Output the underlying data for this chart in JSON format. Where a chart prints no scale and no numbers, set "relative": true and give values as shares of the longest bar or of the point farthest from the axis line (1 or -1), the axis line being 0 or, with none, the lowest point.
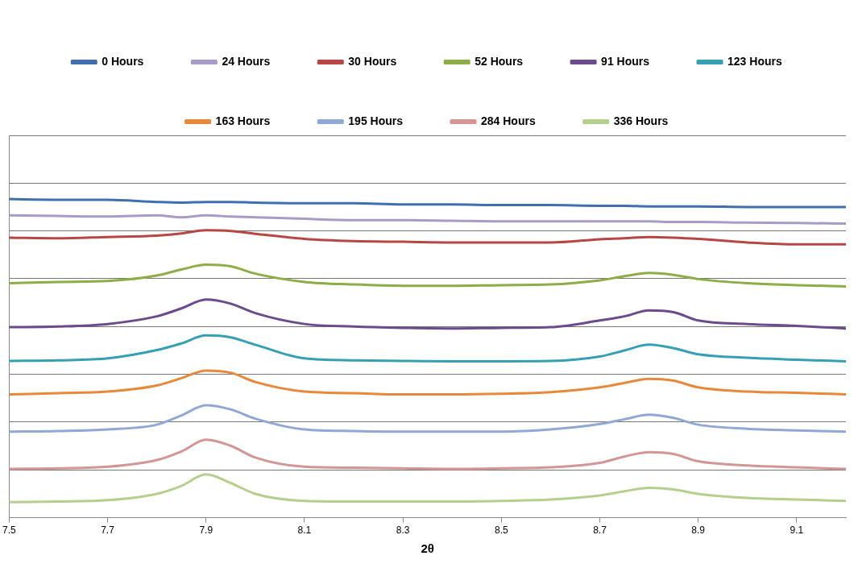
{
  "chart_data": {
    "type": "line",
    "relative": true,
    "xlabel": "2θ",
    "xlim": [
      7.5,
      9.2
    ],
    "xticks": [
      7.5,
      7.7,
      7.9,
      8.1,
      8.3,
      8.5,
      8.7,
      8.9,
      9.1
    ],
    "grid": "y",
    "legend": "top",
    "marker": "none",
    "line_style": "solid",
    "x": [
      7.5,
      7.6,
      7.7,
      7.8,
      7.85,
      7.9,
      7.95,
      8.0,
      8.1,
      8.2,
      8.3,
      8.4,
      8.5,
      8.6,
      8.7,
      8.75,
      8.8,
      8.85,
      8.9,
      9.0,
      9.1,
      9.2
    ],
    "series": [
      {
        "name": "0 Hours",
        "color": "#3f6fb0",
        "values": [
          1.0,
          0.998,
          0.998,
          0.991,
          0.989,
          0.991,
          0.991,
          0.989,
          0.987,
          0.987,
          0.983,
          0.983,
          0.981,
          0.981,
          0.979,
          0.979,
          0.977,
          0.977,
          0.977,
          0.975,
          0.975,
          0.975
        ]
      },
      {
        "name": "24 Hours",
        "color": "#a99bc9",
        "values": [
          0.949,
          0.947,
          0.945,
          0.949,
          0.943,
          0.949,
          0.945,
          0.943,
          0.938,
          0.934,
          0.934,
          0.932,
          0.93,
          0.93,
          0.93,
          0.93,
          0.93,
          0.928,
          0.928,
          0.926,
          0.925,
          0.923
        ]
      },
      {
        "name": "30 Hours",
        "color": "#b84644",
        "values": [
          0.879,
          0.877,
          0.881,
          0.885,
          0.892,
          0.902,
          0.9,
          0.891,
          0.875,
          0.868,
          0.866,
          0.864,
          0.864,
          0.864,
          0.874,
          0.877,
          0.881,
          0.879,
          0.875,
          0.864,
          0.858,
          0.858
        ]
      },
      {
        "name": "52 Hours",
        "color": "#8bae46",
        "values": [
          0.736,
          0.74,
          0.743,
          0.76,
          0.779,
          0.794,
          0.789,
          0.766,
          0.74,
          0.732,
          0.728,
          0.728,
          0.73,
          0.732,
          0.745,
          0.758,
          0.768,
          0.762,
          0.749,
          0.736,
          0.73,
          0.726
        ]
      },
      {
        "name": "91 Hours",
        "color": "#6c4a8e",
        "values": [
          0.598,
          0.6,
          0.608,
          0.632,
          0.657,
          0.685,
          0.672,
          0.642,
          0.608,
          0.6,
          0.596,
          0.594,
          0.596,
          0.598,
          0.619,
          0.632,
          0.651,
          0.645,
          0.619,
          0.608,
          0.602,
          0.594
        ]
      },
      {
        "name": "123 Hours",
        "color": "#35a0b5",
        "values": [
          0.492,
          0.494,
          0.5,
          0.526,
          0.547,
          0.572,
          0.566,
          0.543,
          0.5,
          0.494,
          0.492,
          0.491,
          0.491,
          0.492,
          0.506,
          0.525,
          0.543,
          0.532,
          0.513,
          0.502,
          0.496,
          0.491
        ]
      },
      {
        "name": "163 Hours",
        "color": "#e8883a",
        "values": [
          0.387,
          0.391,
          0.396,
          0.415,
          0.438,
          0.462,
          0.455,
          0.426,
          0.396,
          0.391,
          0.387,
          0.387,
          0.389,
          0.394,
          0.409,
          0.423,
          0.436,
          0.43,
          0.409,
          0.396,
          0.392,
          0.387
        ]
      },
      {
        "name": "195 Hours",
        "color": "#8fa8d5",
        "values": [
          0.27,
          0.272,
          0.277,
          0.292,
          0.321,
          0.353,
          0.34,
          0.311,
          0.277,
          0.272,
          0.27,
          0.27,
          0.27,
          0.277,
          0.294,
          0.309,
          0.323,
          0.313,
          0.292,
          0.279,
          0.274,
          0.27
        ]
      },
      {
        "name": "284 Hours",
        "color": "#d49594",
        "values": [
          0.153,
          0.155,
          0.16,
          0.181,
          0.208,
          0.245,
          0.226,
          0.189,
          0.16,
          0.157,
          0.155,
          0.153,
          0.155,
          0.158,
          0.172,
          0.192,
          0.206,
          0.2,
          0.177,
          0.164,
          0.158,
          0.153
        ]
      },
      {
        "name": "336 Hours",
        "color": "#b5cf8c",
        "values": [
          0.049,
          0.051,
          0.055,
          0.075,
          0.1,
          0.136,
          0.109,
          0.075,
          0.053,
          0.051,
          0.051,
          0.051,
          0.053,
          0.057,
          0.07,
          0.083,
          0.094,
          0.089,
          0.075,
          0.062,
          0.057,
          0.053
        ]
      }
    ]
  }
}
